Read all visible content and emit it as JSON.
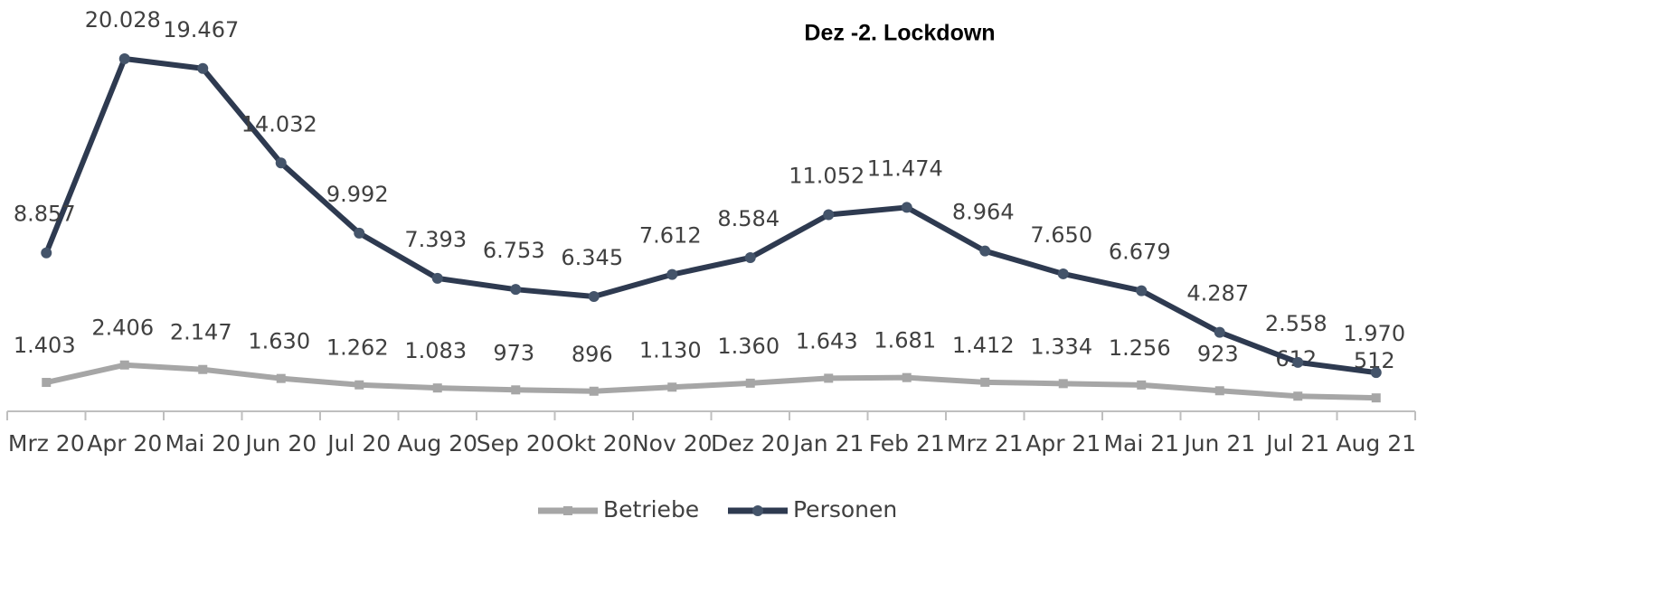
{
  "chart_data": {
    "type": "line",
    "annotation": "Dez -2. Lockdown",
    "categories": [
      "Mrz 20",
      "Apr 20",
      "Mai 20",
      "Jun 20",
      "Jul 20",
      "Aug 20",
      "Sep 20",
      "Okt 20",
      "Nov 20",
      "Dez 20",
      "Jan 21",
      "Feb 21",
      "Mrz 21",
      "Apr 21",
      "Mai 21",
      "Jun 21",
      "Jul 21",
      "Aug 21"
    ],
    "series": [
      {
        "name": "Betriebe",
        "color": "#a6a6a6",
        "marker": "square",
        "values": [
          1403,
          2406,
          2147,
          1630,
          1262,
          1083,
          973,
          896,
          1130,
          1360,
          1643,
          1681,
          1412,
          1334,
          1256,
          923,
          612,
          512
        ],
        "value_labels": [
          "1.403",
          "2.406",
          "2.147",
          "1.630",
          "1.262",
          "1.083",
          "973",
          "896",
          "1.130",
          "1.360",
          "1.643",
          "1.681",
          "1.412",
          "1.334",
          "1.256",
          "923",
          "612",
          "512"
        ]
      },
      {
        "name": "Personen",
        "color": "#2e3a50",
        "marker": "circle",
        "values": [
          8857,
          20028,
          19467,
          14032,
          9992,
          7393,
          6753,
          6345,
          7612,
          8584,
          11052,
          11474,
          8964,
          7650,
          6679,
          4287,
          2558,
          1970
        ],
        "value_labels": [
          "8.857",
          "20.028",
          "19.467",
          "14.032",
          "9.992",
          "7.393",
          "6.753",
          "6.345",
          "7.612",
          "8.584",
          "11.052",
          "11.474",
          "8.964",
          "7.650",
          "6.679",
          "4.287",
          "2.558",
          "1.970"
        ]
      }
    ],
    "legend": "bottom"
  }
}
